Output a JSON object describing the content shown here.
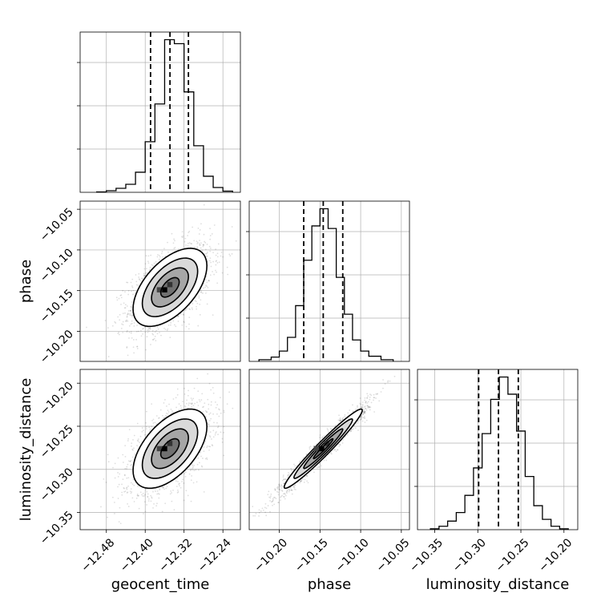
{
  "chart_data": {
    "type": "corner",
    "parameters": [
      {
        "name": "geocent_time",
        "label": "geocent_time"
      },
      {
        "name": "phase",
        "label": "phase"
      },
      {
        "name": "luminosity_distance",
        "label": "luminosity_distance"
      }
    ],
    "grid": true,
    "quantile_color": "#000000",
    "histograms": [
      {
        "parameter": "geocent_time",
        "xlim": [
          -12.534,
          -12.204
        ],
        "bin_edges": [
          -12.5,
          -12.48,
          -12.46,
          -12.44,
          -12.42,
          -12.4,
          -12.38,
          -12.36,
          -12.34,
          -12.32,
          -12.3,
          -12.28,
          -12.26,
          -12.24,
          -12.22
        ],
        "counts": [
          0.5,
          2,
          5,
          10,
          25,
          63,
          110,
          190,
          185,
          125,
          58,
          20,
          6,
          1.5
        ],
        "quantiles": [
          -12.389,
          -12.349,
          -12.311
        ]
      },
      {
        "parameter": "phase",
        "xlim": [
          -10.237,
          -10.04
        ],
        "bin_edges": [
          -10.225,
          -10.21,
          -10.2,
          -10.19,
          -10.18,
          -10.17,
          -10.16,
          -10.15,
          -10.14,
          -10.13,
          -10.12,
          -10.11,
          -10.1,
          -10.09,
          -10.075,
          -10.06
        ],
        "counts": [
          2,
          5,
          12,
          28,
          65,
          118,
          158,
          178,
          155,
          98,
          55,
          25,
          12,
          6,
          2
        ],
        "quantiles": [
          -10.17,
          -10.146,
          -10.122
        ]
      },
      {
        "parameter": "luminosity_distance",
        "xlim": [
          -10.37,
          -10.184
        ],
        "bin_edges": [
          -10.355,
          -10.345,
          -10.335,
          -10.325,
          -10.315,
          -10.305,
          -10.295,
          -10.285,
          -10.275,
          -10.265,
          -10.255,
          -10.245,
          -10.235,
          -10.225,
          -10.215,
          -10.205,
          -10.195
        ],
        "counts": [
          1,
          4,
          10,
          20,
          40,
          72,
          112,
          152,
          178,
          158,
          115,
          62,
          28,
          12,
          4,
          1
        ],
        "quantiles": [
          -10.299,
          -10.276,
          -10.253
        ]
      }
    ],
    "pairs": [
      {
        "x": "geocent_time",
        "y": "phase",
        "xlim": [
          -12.534,
          -12.204
        ],
        "ylim": [
          -10.237,
          -10.04
        ],
        "mean": [
          -12.349,
          -10.146
        ],
        "std": [
          0.038,
          0.024
        ],
        "corr": 0.55,
        "peak": [
          -12.36,
          -10.149
        ]
      },
      {
        "x": "geocent_time",
        "y": "luminosity_distance",
        "xlim": [
          -12.534,
          -12.204
        ],
        "ylim": [
          -10.37,
          -10.184
        ],
        "mean": [
          -12.349,
          -10.276
        ],
        "std": [
          0.038,
          0.023
        ],
        "corr": 0.55,
        "peak": [
          -12.36,
          -10.276
        ]
      },
      {
        "x": "phase",
        "y": "luminosity_distance",
        "xlim": [
          -10.237,
          -10.04
        ],
        "ylim": [
          -10.37,
          -10.184
        ],
        "mean": [
          -10.146,
          -10.276
        ],
        "std": [
          0.024,
          0.023
        ],
        "corr": 0.97,
        "peak": [
          -10.148,
          -10.276
        ]
      }
    ],
    "ticks": {
      "geocent_time": {
        "values": [
          -12.48,
          -12.4,
          -12.32,
          -12.24
        ],
        "labels": [
          "−12.48",
          "−12.40",
          "−12.32",
          "−12.24"
        ]
      },
      "phase_x": {
        "values": [
          -10.2,
          -10.15,
          -10.1,
          -10.05
        ],
        "labels": [
          "−10.20",
          "−10.15",
          "−10.10",
          "−10.05"
        ]
      },
      "phase_y": {
        "values": [
          -10.05,
          -10.1,
          -10.15,
          -10.2
        ],
        "labels": [
          "−10.05",
          "−10.10",
          "−10.15",
          "−10.20"
        ]
      },
      "luminosity_distance_x": {
        "values": [
          -10.35,
          -10.3,
          -10.25,
          -10.2
        ],
        "labels": [
          "−10.35",
          "−10.30",
          "−10.25",
          "−10.20"
        ]
      },
      "luminosity_distance_y": {
        "values": [
          -10.2,
          -10.25,
          -10.3,
          -10.35
        ],
        "labels": [
          "−10.20",
          "−10.25",
          "−10.30",
          "−10.35"
        ]
      }
    },
    "contour_levels": [
      0.5,
      1.0,
      1.5,
      2.0
    ]
  }
}
